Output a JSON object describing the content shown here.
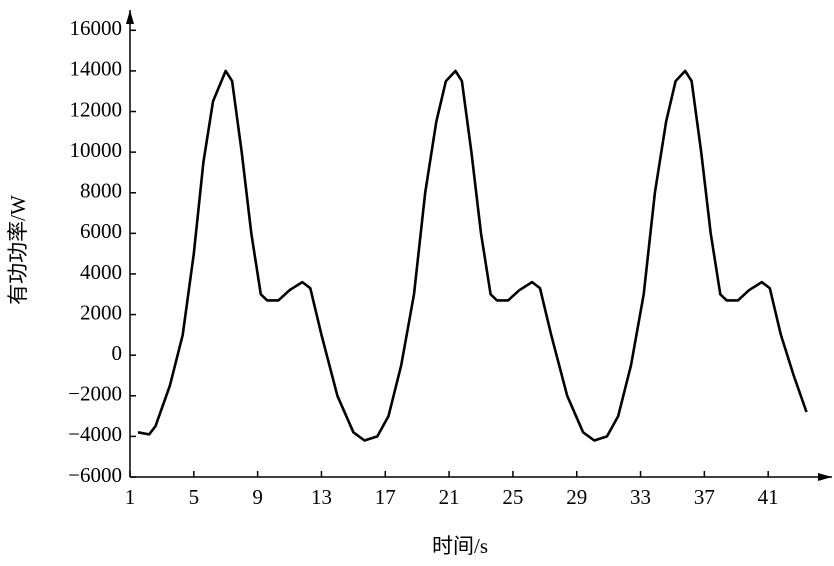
{
  "chart_data": {
    "type": "line",
    "x_label": "时间/s",
    "y_label": "有功功率/W",
    "xlim": [
      1,
      45
    ],
    "ylim": [
      -6000,
      17000
    ],
    "xticks": [
      1,
      5,
      9,
      13,
      17,
      21,
      25,
      29,
      33,
      37,
      41
    ],
    "yticks": [
      {
        "value": -6000,
        "label": "−6000"
      },
      {
        "value": -4000,
        "label": "−4000"
      },
      {
        "value": -2000,
        "label": "−2000"
      },
      0,
      2000,
      4000,
      6000,
      8000,
      10000,
      12000,
      14000,
      16000
    ],
    "grid": false,
    "x": [
      1.5,
      2.2,
      2.6,
      3.5,
      4.3,
      5.0,
      5.6,
      6.2,
      7.0,
      7.4,
      8.0,
      8.6,
      9.2,
      9.6,
      10.3,
      11.0,
      11.8,
      12.3,
      13.0,
      14.0,
      15.0,
      15.7,
      16.5,
      17.2,
      18.0,
      18.8,
      19.5,
      20.2,
      20.8,
      21.4,
      21.8,
      22.4,
      23.0,
      23.6,
      24.0,
      24.7,
      25.4,
      26.2,
      26.7,
      27.4,
      28.4,
      29.4,
      30.1,
      30.9,
      31.6,
      32.4,
      33.2,
      33.9,
      34.6,
      35.2,
      35.8,
      36.2,
      36.8,
      37.4,
      38.0,
      38.4,
      39.1,
      39.8,
      40.6,
      41.1,
      41.8,
      42.6,
      43.4
    ],
    "series": [
      {
        "color": "#000000",
        "values": [
          -3800,
          -3900,
          -3500,
          -1500,
          1000,
          5000,
          9500,
          12500,
          14000,
          13500,
          10000,
          6000,
          3000,
          2700,
          2700,
          3200,
          3600,
          3300,
          1000,
          -2000,
          -3800,
          -4200,
          -4000,
          -3000,
          -500,
          3000,
          8000,
          11500,
          13500,
          14000,
          13500,
          10000,
          6000,
          3000,
          2700,
          2700,
          3200,
          3600,
          3300,
          1000,
          -2000,
          -3800,
          -4200,
          -4000,
          -3000,
          -500,
          3000,
          8000,
          11500,
          13500,
          14000,
          13500,
          10000,
          6000,
          3000,
          2700,
          2700,
          3200,
          3600,
          3300,
          1000,
          -1000,
          -2800
        ]
      }
    ]
  }
}
